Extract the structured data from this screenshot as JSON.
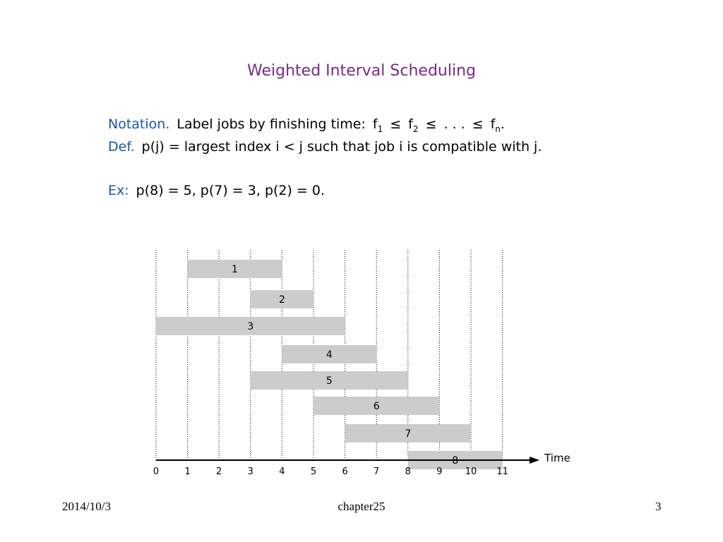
{
  "title": "Weighted Interval Scheduling",
  "notation": {
    "keyword": "Notation.",
    "text": "Label jobs by finishing time:",
    "f": "f",
    "sub1": "1",
    "sub2": "2",
    "subn": "n",
    "leq": "≤",
    "ellipsis": ". . .",
    "period": "."
  },
  "definition": {
    "keyword": "Def.",
    "text": "p(j) = largest index i < j such that job i is compatible with j."
  },
  "example": {
    "keyword": "Ex:",
    "text": "p(8) = 5, p(7) = 3, p(2) = 0."
  },
  "chart_data": {
    "type": "table",
    "axis_label": "Time",
    "ticks": [
      "0",
      "1",
      "2",
      "3",
      "4",
      "5",
      "6",
      "7",
      "8",
      "9",
      "10",
      "11"
    ],
    "jobs": [
      {
        "label": "1",
        "start": 1,
        "finish": 4
      },
      {
        "label": "2",
        "start": 3,
        "finish": 5
      },
      {
        "label": "3",
        "start": 0,
        "finish": 6
      },
      {
        "label": "4",
        "start": 4,
        "finish": 7
      },
      {
        "label": "5",
        "start": 3,
        "finish": 8
      },
      {
        "label": "6",
        "start": 5,
        "finish": 9
      },
      {
        "label": "7",
        "start": 6,
        "finish": 10
      },
      {
        "label": "8",
        "start": 8,
        "finish": 11
      }
    ],
    "bar_color": "#cccccc"
  },
  "footer": {
    "date": "2014/10/3",
    "chapter": "chapter25",
    "page": "3"
  }
}
